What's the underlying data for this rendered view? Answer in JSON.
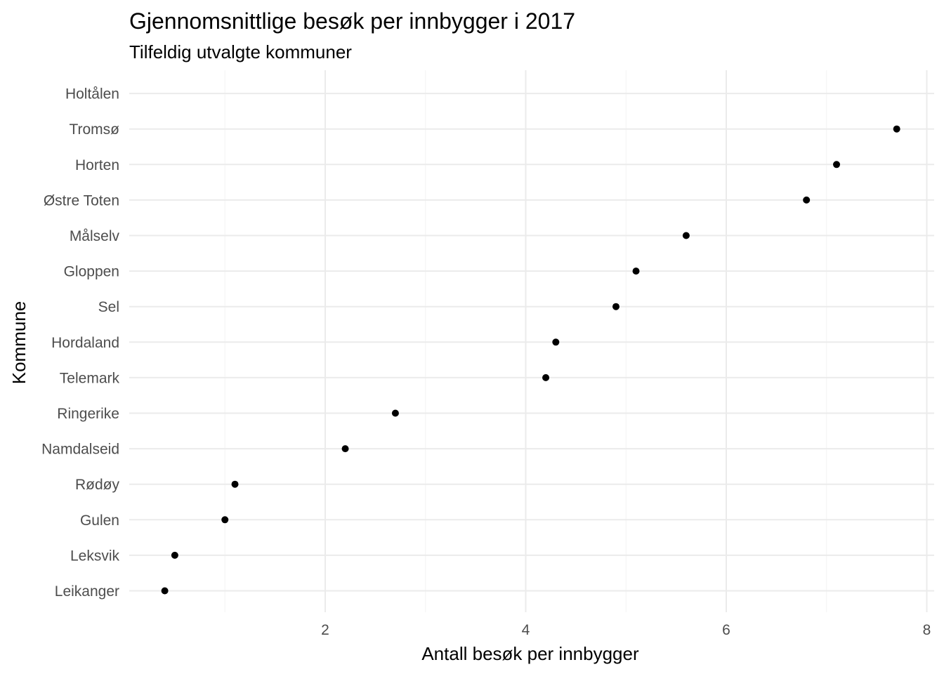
{
  "chart_data": {
    "type": "scatter",
    "title": "Gjennomsnittlige besøk per innbygger i 2017",
    "subtitle": "Tilfeldig utvalgte kommuner",
    "xlabel": "Antall besøk per innbygger",
    "ylabel": "Kommune",
    "xlim": [
      0,
      8
    ],
    "x_ticks": [
      2,
      4,
      6,
      8
    ],
    "x_minor_ticks": [
      1,
      3,
      5,
      7
    ],
    "grid": true,
    "legend": "none",
    "point_color": "#000000",
    "categories": [
      "Leikanger",
      "Leksvik",
      "Gulen",
      "Rødøy",
      "Namdalseid",
      "Ringerike",
      "Telemark",
      "Hordaland",
      "Sel",
      "Gloppen",
      "Målselv",
      "Østre Toten",
      "Horten",
      "Tromsø",
      "Holtålen"
    ],
    "values": [
      0.4,
      0.5,
      1.0,
      1.1,
      2.2,
      2.7,
      4.2,
      4.3,
      4.9,
      5.1,
      5.6,
      6.8,
      7.1,
      7.7,
      null
    ]
  }
}
